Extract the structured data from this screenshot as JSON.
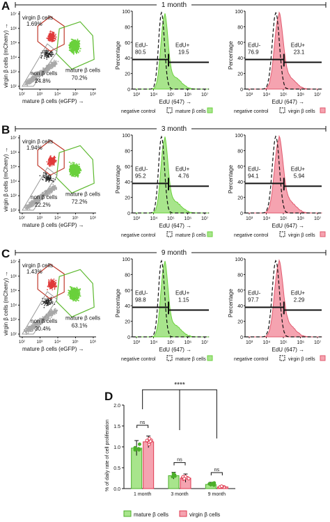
{
  "figure": {
    "legend_d": {
      "mature_label": "mature β cells",
      "virgin_label": "virgin β cells"
    },
    "sections": [
      {
        "letter": "A",
        "time": "1 month",
        "flow": {
          "virgin_label": "virgin β cells",
          "virgin_pct": "1.69%",
          "mature_label": "mature β cells",
          "mature_pct": "70.2%",
          "non_label": "non β cells",
          "non_pct": "24.8%",
          "xlabel": "mature β cells (eGFP) →",
          "ylabel": "virgin β cells (mCherry) →"
        },
        "hist_mature": {
          "neg_label": "EdU-",
          "neg_val": "80.5",
          "pos_label": "EdU+",
          "pos_val": "19.5",
          "ylabel": "Percentage",
          "xlabel": "EdU (647) →",
          "legend_neg": "negative control",
          "legend_pos": "mature β cells"
        },
        "hist_virgin": {
          "neg_label": "EdU-",
          "neg_val": "76.9",
          "pos_label": "EdU+",
          "pos_val": "23.1",
          "ylabel": "Percentage",
          "xlabel": "EdU (647) →",
          "legend_neg": "negative control",
          "legend_pos": "virgin β cells"
        }
      },
      {
        "letter": "B",
        "time": "3 month",
        "flow": {
          "virgin_label": "virgin β cells",
          "virgin_pct": "1.94%",
          "mature_label": "mature β cells",
          "mature_pct": "72.2%",
          "non_label": "non β cells",
          "non_pct": "22.2%",
          "xlabel": "mature β cells (eGFP) →",
          "ylabel": "virgin β cells (mCherry) →"
        },
        "hist_mature": {
          "neg_label": "EdU-",
          "neg_val": "95.2",
          "pos_label": "EdU+",
          "pos_val": "4.76",
          "ylabel": "Percentage",
          "xlabel": "EdU (647) →",
          "legend_neg": "negative control",
          "legend_pos": "mature β cells"
        },
        "hist_virgin": {
          "neg_label": "EdU-",
          "neg_val": "94.1",
          "pos_label": "EdU+",
          "pos_val": "5.94",
          "ylabel": "Percentage",
          "xlabel": "EdU (647) →",
          "legend_neg": "negative control",
          "legend_pos": "virgin β cells"
        }
      },
      {
        "letter": "C",
        "time": "9 month",
        "flow": {
          "virgin_label": "virgin β cells",
          "virgin_pct": "1.43%",
          "mature_label": "mature β cells",
          "mature_pct": "63.1%",
          "non_label": "non β cells",
          "non_pct": "30.4%",
          "xlabel": "mature β cells (eGFP) →",
          "ylabel": "virgin β cells (mCherry) →"
        },
        "hist_mature": {
          "neg_label": "EdU-",
          "neg_val": "98.8",
          "pos_label": "EdU+",
          "pos_val": "1.15",
          "ylabel": "Percentage",
          "xlabel": "EdU (647) →",
          "legend_neg": "negative control",
          "legend_pos": "mature β cells"
        },
        "hist_virgin": {
          "neg_label": "EdU-",
          "neg_val": "97.7",
          "pos_label": "EdU+",
          "pos_val": "2.29",
          "ylabel": "Percentage",
          "xlabel": "EdU (647) →",
          "legend_neg": "negative control",
          "legend_pos": "virgin β cells"
        }
      }
    ],
    "axis_ticks": {
      "hist_x": [
        "10³",
        "10⁴",
        "10⁵",
        "10⁶",
        "10⁷"
      ],
      "hist_y": [
        "0",
        "20",
        "40",
        "60",
        "80",
        "100"
      ],
      "flow_x": [
        "10²",
        "10³",
        "10⁴",
        "10⁵",
        "10⁶"
      ],
      "flow_y": [
        "10²",
        "10³",
        "10⁴",
        "10⁵",
        "10⁶",
        "10⁷"
      ]
    },
    "panel_d": {
      "letter": "D",
      "significance": "****",
      "ns_labels": [
        "ns",
        "ns",
        "ns"
      ]
    },
    "colors": {
      "mature": "#7ed957",
      "mature_fill": "#a8e58c",
      "virgin": "#f27a8e",
      "virgin_fill": "#f5a3b0",
      "non": "#a9a9a9"
    }
  },
  "chart_data": [
    {
      "type": "bar",
      "title": "",
      "xlabel": "",
      "ylabel": "% of daily rate of cell proliferation",
      "categories": [
        "1 month",
        "3 month",
        "9 month"
      ],
      "ylim": [
        0,
        2.0
      ],
      "yticks": [
        "0.0",
        "0.5",
        "1.0",
        "1.5",
        "2.0"
      ],
      "series": [
        {
          "name": "mature β cells",
          "values": [
            0.97,
            0.31,
            0.1
          ],
          "errors": [
            0.18,
            0.08,
            0.05
          ]
        },
        {
          "name": "virgin β cells",
          "values": [
            1.12,
            0.25,
            0.04
          ],
          "errors": [
            0.14,
            0.1,
            0.02
          ]
        }
      ],
      "legend": "bottom",
      "grid": false
    }
  ]
}
